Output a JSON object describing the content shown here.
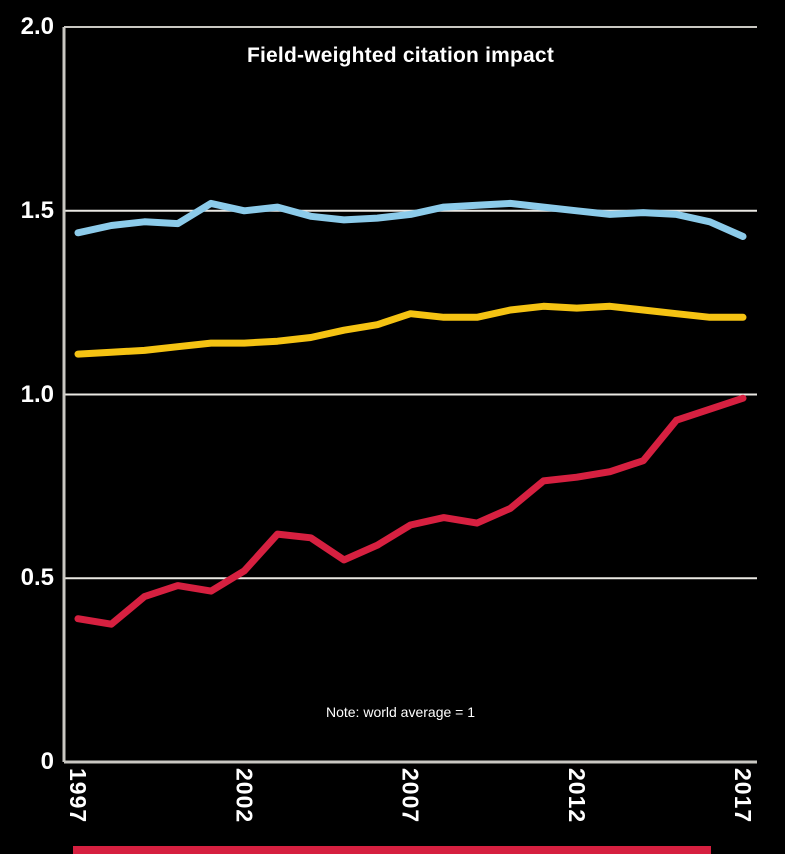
{
  "chart_data": {
    "type": "line",
    "title": "Field-weighted citation impact",
    "note": "Note: world average = 1",
    "background": "#000000",
    "text_color": "#ffffff",
    "axis_color": "#c9c7c2",
    "gridline_color": "#eae8e3",
    "xlim": [
      1997,
      2017
    ],
    "ylim": [
      0,
      2.0
    ],
    "gridlines": [
      1.5,
      1.0,
      0.5
    ],
    "grid_on": true,
    "legend": "none",
    "x": [
      1997,
      1998,
      1999,
      2000,
      2001,
      2002,
      2003,
      2004,
      2005,
      2006,
      2007,
      2008,
      2009,
      2010,
      2011,
      2012,
      2013,
      2014,
      2015,
      2016,
      2017
    ],
    "x_ticks": [
      {
        "label": "1997",
        "year": 1997
      },
      {
        "label": "2002",
        "year": 2002
      },
      {
        "label": "2007",
        "year": 2007
      },
      {
        "label": "2012",
        "year": 2012
      },
      {
        "label": "2017",
        "year": 2017
      }
    ],
    "y_ticks": [
      {
        "label": "2.0",
        "value": 2.0
      },
      {
        "label": "1.5",
        "value": 1.5
      },
      {
        "label": "1.0",
        "value": 1.0
      },
      {
        "label": "0.5",
        "value": 0.5
      },
      {
        "label": "0",
        "value": 0
      }
    ],
    "series": [
      {
        "name": "series-blue",
        "color": "#8ccbea",
        "values": [
          1.44,
          1.46,
          1.47,
          1.465,
          1.52,
          1.5,
          1.51,
          1.485,
          1.475,
          1.48,
          1.49,
          1.51,
          1.515,
          1.52,
          1.51,
          1.5,
          1.49,
          1.495,
          1.49,
          1.47,
          1.43
        ]
      },
      {
        "name": "series-yellow",
        "color": "#f5c313",
        "values": [
          1.11,
          1.115,
          1.12,
          1.13,
          1.14,
          1.14,
          1.145,
          1.155,
          1.175,
          1.19,
          1.22,
          1.21,
          1.21,
          1.23,
          1.24,
          1.235,
          1.24,
          1.23,
          1.22,
          1.21,
          1.21
        ]
      },
      {
        "name": "series-red",
        "color": "#d62040",
        "values": [
          0.39,
          0.375,
          0.45,
          0.48,
          0.465,
          0.52,
          0.62,
          0.61,
          0.55,
          0.59,
          0.645,
          0.665,
          0.65,
          0.69,
          0.765,
          0.775,
          0.79,
          0.82,
          0.93,
          0.96,
          0.99
        ]
      }
    ]
  },
  "footer": {
    "bar_color": "#d62040"
  }
}
